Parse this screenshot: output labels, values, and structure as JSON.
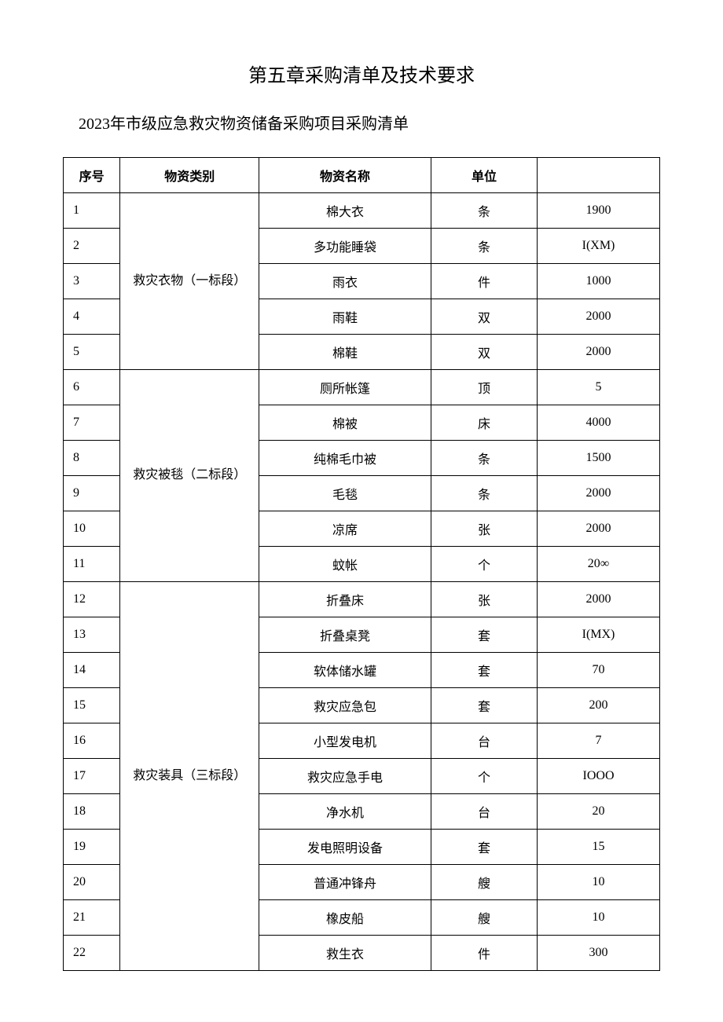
{
  "chapter_title": "第五章采购清单及技术要求",
  "subtitle": "2023年市级应急救灾物资储备采购项目采购清单",
  "table": {
    "columns": [
      "序号",
      "物资类别",
      "物资名称",
      "单位",
      ""
    ],
    "categories": [
      {
        "name": "救灾衣物（一标段）",
        "rows": [
          {
            "seq": "1",
            "item": "棉大衣",
            "unit": "条",
            "qty": "1900"
          },
          {
            "seq": "2",
            "item": "多功能睡袋",
            "unit": "条",
            "qty": "I(XM)"
          },
          {
            "seq": "3",
            "item": "雨衣",
            "unit": "件",
            "qty": "1000"
          },
          {
            "seq": "4",
            "item": "雨鞋",
            "unit": "双",
            "qty": "2000"
          },
          {
            "seq": "5",
            "item": "棉鞋",
            "unit": "双",
            "qty": "2000"
          }
        ]
      },
      {
        "name": "救灾被毯（二标段）",
        "rows": [
          {
            "seq": "6",
            "item": "厕所帐篷",
            "unit": "顶",
            "qty": "5"
          },
          {
            "seq": "7",
            "item": "棉被",
            "unit": "床",
            "qty": "4000"
          },
          {
            "seq": "8",
            "item": "纯棉毛巾被",
            "unit": "条",
            "qty": "1500"
          },
          {
            "seq": "9",
            "item": "毛毯",
            "unit": "条",
            "qty": "2000"
          },
          {
            "seq": "10",
            "item": "凉席",
            "unit": "张",
            "qty": "2000"
          },
          {
            "seq": "11",
            "item": "蚊帐",
            "unit": "个",
            "qty": "20∞"
          }
        ]
      },
      {
        "name": "救灾装具（三标段）",
        "rows": [
          {
            "seq": "12",
            "item": "折叠床",
            "unit": "张",
            "qty": "2000"
          },
          {
            "seq": "13",
            "item": "折叠桌凳",
            "unit": "套",
            "qty": "I(MX)"
          },
          {
            "seq": "14",
            "item": "软体储水罐",
            "unit": "套",
            "qty": "70"
          },
          {
            "seq": "15",
            "item": "救灾应急包",
            "unit": "套",
            "qty": "200"
          },
          {
            "seq": "16",
            "item": "小型发电机",
            "unit": "台",
            "qty": "7"
          },
          {
            "seq": "17",
            "item": "救灾应急手电",
            "unit": "个",
            "qty": "IOOO"
          },
          {
            "seq": "18",
            "item": "净水机",
            "unit": "台",
            "qty": "20"
          },
          {
            "seq": "19",
            "item": "发电照明设备",
            "unit": "套",
            "qty": "15"
          },
          {
            "seq": "20",
            "item": "普通冲锋舟",
            "unit": "艘",
            "qty": "10"
          },
          {
            "seq": "21",
            "item": "橡皮船",
            "unit": "艘",
            "qty": "10"
          },
          {
            "seq": "22",
            "item": "救生衣",
            "unit": "件",
            "qty": "300"
          }
        ]
      }
    ]
  }
}
